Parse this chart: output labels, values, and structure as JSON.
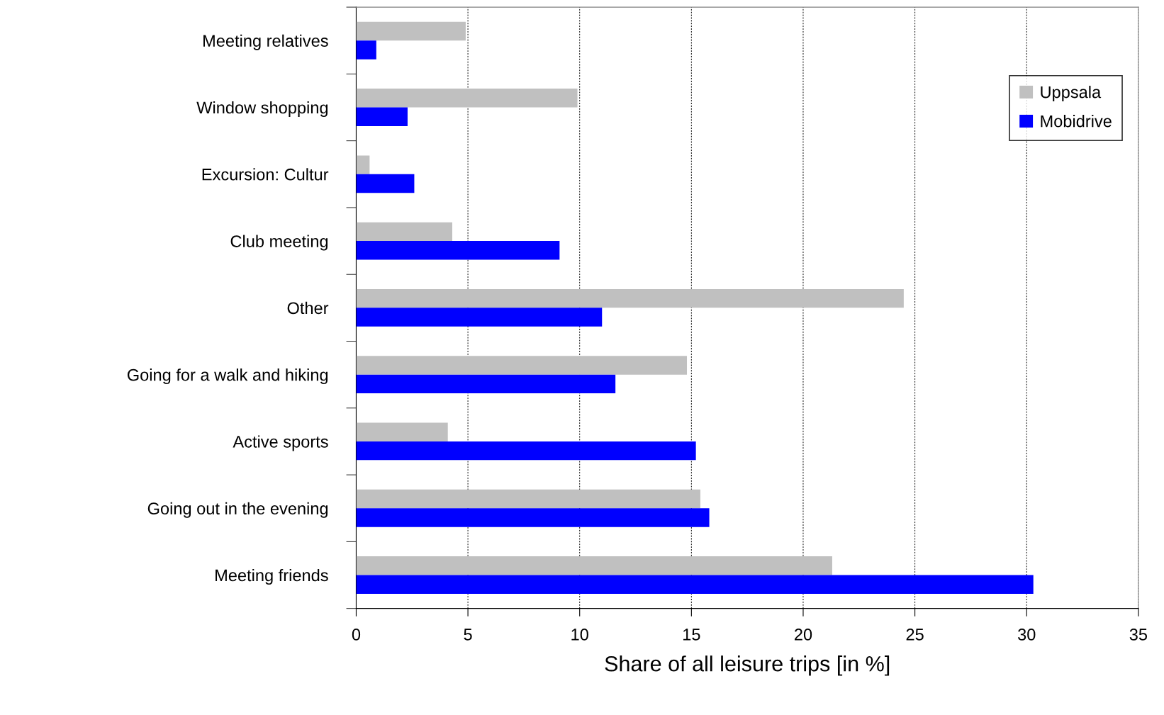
{
  "chart_data": {
    "type": "bar",
    "orientation": "horizontal",
    "xlabel": "Share of all leisure trips [in %]",
    "categories": [
      "Meeting relatives",
      "Window shopping",
      "Excursion: Cultur",
      "Club meeting",
      "Other",
      "Going for a walk and hiking",
      "Active sports",
      "Going out in the evening",
      "Meeting friends"
    ],
    "series": [
      {
        "name": "Uppsala",
        "color": "#c0c0c0",
        "values": [
          4.9,
          9.9,
          0.6,
          4.3,
          24.5,
          14.8,
          4.1,
          15.4,
          21.3
        ]
      },
      {
        "name": "Mobidrive",
        "color": "#0000ff",
        "values": [
          0.9,
          2.3,
          2.6,
          9.1,
          11.0,
          11.6,
          15.2,
          15.8,
          30.3
        ]
      }
    ],
    "xlim": [
      0,
      35
    ],
    "xticks": [
      0,
      5,
      10,
      15,
      20,
      25,
      30,
      35
    ],
    "grid": "x",
    "legend": "top right"
  }
}
